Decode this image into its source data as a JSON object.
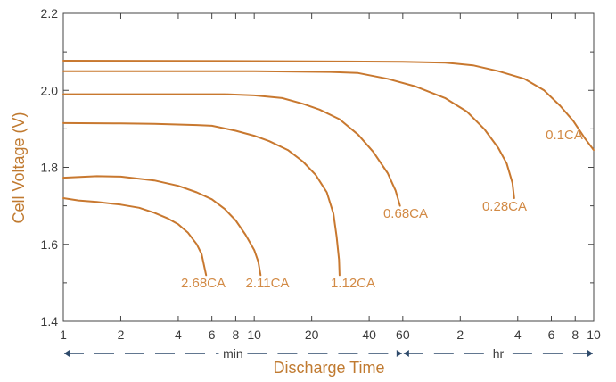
{
  "chart_data": {
    "type": "line",
    "title": "",
    "ylabel": "Cell Voltage (V)",
    "xlabel": "Discharge Time",
    "ylim": [
      1.4,
      2.2
    ],
    "yticks": [
      "1.4",
      "1.6",
      "1.8",
      "2.0",
      "2.2"
    ],
    "x_scale": "log",
    "xlim_minutes": [
      1,
      600
    ],
    "xticks": [
      {
        "label": "1",
        "minutes": 1
      },
      {
        "label": "2",
        "minutes": 2
      },
      {
        "label": "4",
        "minutes": 4
      },
      {
        "label": "6",
        "minutes": 6
      },
      {
        "label": "8",
        "minutes": 8
      },
      {
        "label": "10",
        "minutes": 10
      },
      {
        "label": "20",
        "minutes": 20
      },
      {
        "label": "40",
        "minutes": 40
      },
      {
        "label": "60",
        "minutes": 60
      },
      {
        "label": "2",
        "minutes": 120
      },
      {
        "label": "4",
        "minutes": 240
      },
      {
        "label": "6",
        "minutes": 360
      },
      {
        "label": "8",
        "minutes": 480
      },
      {
        "label": "10",
        "minutes": 600
      }
    ],
    "units": [
      {
        "label": "min",
        "from_minutes": 1,
        "to_minutes": 60
      },
      {
        "label": "hr",
        "from_minutes": 60,
        "to_minutes": 600
      }
    ],
    "line_color": "#c8782f",
    "series": [
      {
        "name": "2.68CA",
        "points": [
          [
            1,
            1.72
          ],
          [
            1.2,
            1.714
          ],
          [
            1.5,
            1.71
          ],
          [
            2,
            1.703
          ],
          [
            2.5,
            1.695
          ],
          [
            3,
            1.682
          ],
          [
            3.5,
            1.668
          ],
          [
            4,
            1.652
          ],
          [
            4.5,
            1.63
          ],
          [
            5,
            1.6
          ],
          [
            5.3,
            1.575
          ],
          [
            5.6,
            1.52
          ]
        ]
      },
      {
        "name": "2.11CA",
        "points": [
          [
            1,
            1.773
          ],
          [
            1.5,
            1.777
          ],
          [
            2,
            1.776
          ],
          [
            3,
            1.766
          ],
          [
            4,
            1.752
          ],
          [
            5,
            1.735
          ],
          [
            6,
            1.717
          ],
          [
            7,
            1.692
          ],
          [
            8,
            1.662
          ],
          [
            9,
            1.625
          ],
          [
            10,
            1.585
          ],
          [
            10.5,
            1.555
          ],
          [
            10.8,
            1.52
          ]
        ]
      },
      {
        "name": "1.12CA",
        "points": [
          [
            1,
            1.915
          ],
          [
            2,
            1.914
          ],
          [
            3,
            1.913
          ],
          [
            5,
            1.91
          ],
          [
            6,
            1.908
          ],
          [
            8,
            1.895
          ],
          [
            10,
            1.882
          ],
          [
            12,
            1.868
          ],
          [
            15,
            1.845
          ],
          [
            18,
            1.815
          ],
          [
            21,
            1.78
          ],
          [
            24,
            1.735
          ],
          [
            26,
            1.68
          ],
          [
            27,
            1.62
          ],
          [
            27.8,
            1.56
          ],
          [
            28,
            1.52
          ]
        ]
      },
      {
        "name": "0.68CA",
        "points": [
          [
            1,
            1.99
          ],
          [
            3,
            1.99
          ],
          [
            7,
            1.99
          ],
          [
            10,
            1.987
          ],
          [
            14,
            1.98
          ],
          [
            18,
            1.965
          ],
          [
            22,
            1.95
          ],
          [
            28,
            1.925
          ],
          [
            35,
            1.885
          ],
          [
            42,
            1.84
          ],
          [
            50,
            1.785
          ],
          [
            55,
            1.74
          ],
          [
            58,
            1.7
          ]
        ]
      },
      {
        "name": "0.28CA",
        "points": [
          [
            1,
            2.05
          ],
          [
            10,
            2.05
          ],
          [
            25,
            2.048
          ],
          [
            35,
            2.045
          ],
          [
            50,
            2.03
          ],
          [
            70,
            2.01
          ],
          [
            100,
            1.98
          ],
          [
            130,
            1.945
          ],
          [
            160,
            1.9
          ],
          [
            190,
            1.85
          ],
          [
            210,
            1.81
          ],
          [
            225,
            1.76
          ],
          [
            230,
            1.72
          ]
        ]
      },
      {
        "name": "0.1CA",
        "points": [
          [
            1,
            2.077
          ],
          [
            10,
            2.076
          ],
          [
            30,
            2.075
          ],
          [
            60,
            2.074
          ],
          [
            100,
            2.072
          ],
          [
            140,
            2.065
          ],
          [
            190,
            2.05
          ],
          [
            260,
            2.03
          ],
          [
            330,
            2.0
          ],
          [
            400,
            1.96
          ],
          [
            470,
            1.92
          ],
          [
            540,
            1.875
          ],
          [
            600,
            1.845
          ]
        ]
      }
    ]
  }
}
